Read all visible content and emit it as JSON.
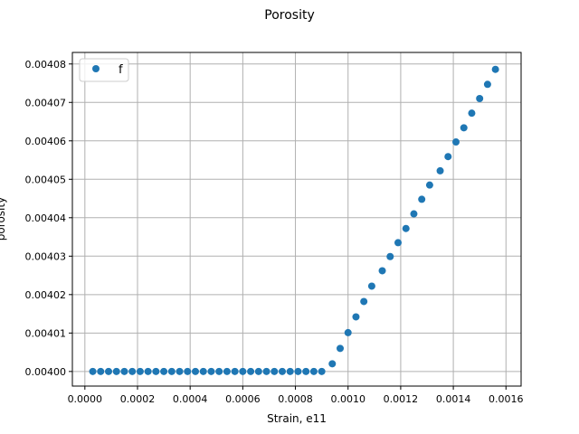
{
  "chart_data": {
    "type": "scatter",
    "title": "Porosity",
    "xlabel": "Strain, e11",
    "ylabel": "porosity",
    "xlim": [
      -4.75e-05,
      0.0016575
    ],
    "ylim": [
      0.0039962,
      0.004083
    ],
    "grid": true,
    "legend_position": "top-left",
    "xticks": [
      0.0,
      0.0002,
      0.0004,
      0.0006,
      0.0008,
      0.001,
      0.0012,
      0.0014,
      0.0016
    ],
    "xtick_labels": [
      "0.0000",
      "0.0002",
      "0.0004",
      "0.0006",
      "0.0008",
      "0.0010",
      "0.0012",
      "0.0014",
      "0.0016"
    ],
    "yticks": [
      0.004,
      0.00401,
      0.00402,
      0.00403,
      0.00404,
      0.00405,
      0.00406,
      0.00407,
      0.00408
    ],
    "ytick_labels": [
      "0.00400",
      "0.00401",
      "0.00402",
      "0.00403",
      "0.00404",
      "0.00405",
      "0.00406",
      "0.00407",
      "0.00408"
    ],
    "series": [
      {
        "name": "f",
        "color": "#1f77b4",
        "x": [
          3e-05,
          6e-05,
          9e-05,
          0.00012,
          0.00015,
          0.00018,
          0.00021,
          0.00024,
          0.00027,
          0.0003,
          0.00033,
          0.00036,
          0.00039,
          0.00042,
          0.00045,
          0.00048,
          0.00051,
          0.00054,
          0.00057,
          0.0006,
          0.00063,
          0.00066,
          0.00069,
          0.00072,
          0.00075,
          0.00078,
          0.00081,
          0.00084,
          0.00087,
          0.0009,
          0.00094,
          0.00097,
          0.001,
          0.00103,
          0.00106,
          0.00109,
          0.00113,
          0.00116,
          0.00119,
          0.00122,
          0.00125,
          0.00128,
          0.00131,
          0.00135,
          0.00138,
          0.00141,
          0.00144,
          0.00147,
          0.0015,
          0.00153,
          0.00156
        ],
        "y": [
          0.004,
          0.004,
          0.004,
          0.004,
          0.004,
          0.004,
          0.004,
          0.004,
          0.004,
          0.004,
          0.004,
          0.004,
          0.004,
          0.004,
          0.004,
          0.004,
          0.004,
          0.004,
          0.004,
          0.004,
          0.004,
          0.004,
          0.004,
          0.004,
          0.004,
          0.004,
          0.004,
          0.004,
          0.004,
          0.004,
          0.004002,
          0.004006,
          0.0040101,
          0.0040142,
          0.0040182,
          0.0040222,
          0.0040262,
          0.0040299,
          0.0040335,
          0.0040372,
          0.004041,
          0.0040448,
          0.0040485,
          0.0040522,
          0.0040559,
          0.0040597,
          0.0040634,
          0.0040672,
          0.004071,
          0.0040747,
          0.0040786
        ]
      }
    ]
  }
}
